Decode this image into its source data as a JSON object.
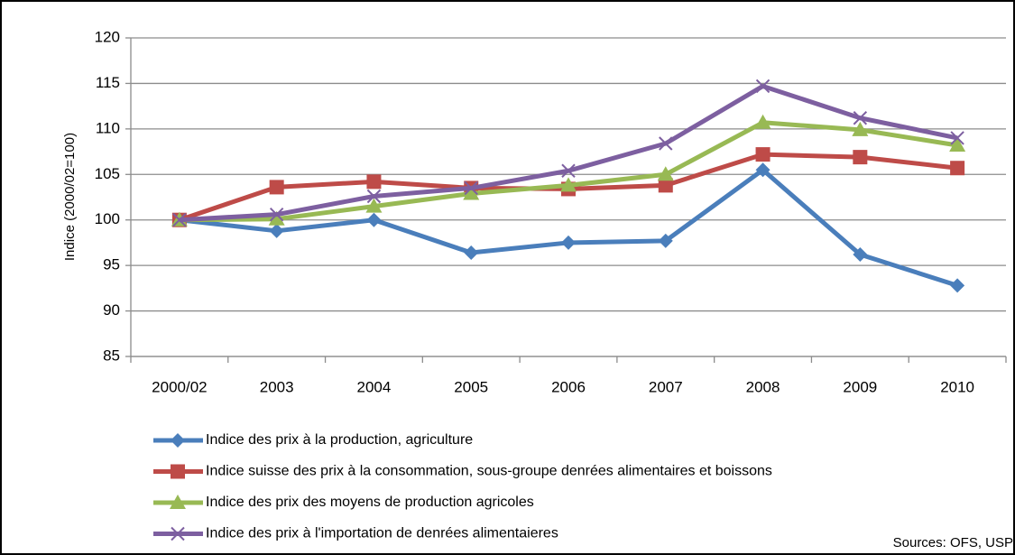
{
  "chart_data": {
    "type": "line",
    "y_label": "Indice (2000/02=100)",
    "source": "Sources: OFS, USP",
    "categories": [
      "2000/02",
      "2003",
      "2004",
      "2005",
      "2006",
      "2007",
      "2008",
      "2009",
      "2010"
    ],
    "series": [
      {
        "name": "Indice des prix à la production,  agriculture",
        "color": "#4a7ebb",
        "marker": "diamond",
        "values": [
          100,
          98.8,
          100,
          96.4,
          97.5,
          97.7,
          105.5,
          96.2,
          92.8
        ]
      },
      {
        "name": "Indice suisse des prix à la consommation, sous-groupe denrées alimentaires et boissons",
        "color": "#be4b48",
        "marker": "square",
        "values": [
          100,
          103.6,
          104.2,
          103.5,
          103.4,
          103.8,
          107.2,
          106.9,
          105.7
        ]
      },
      {
        "name": "Indice des prix des moyens de production agricoles",
        "color": "#98b954",
        "marker": "triangle",
        "values": [
          100,
          100.1,
          101.5,
          102.9,
          103.8,
          105,
          110.7,
          109.9,
          108.2
        ]
      },
      {
        "name": "Indice des prix à l'importation de denrées alimentaieres",
        "color": "#7d5fa0",
        "marker": "x",
        "values": [
          100,
          100.6,
          102.6,
          103.5,
          105.4,
          108.4,
          114.7,
          111.2,
          109
        ]
      }
    ],
    "ylim": [
      85,
      120
    ],
    "yticks": [
      85,
      90,
      95,
      100,
      105,
      110,
      115,
      120
    ],
    "grid": true
  }
}
